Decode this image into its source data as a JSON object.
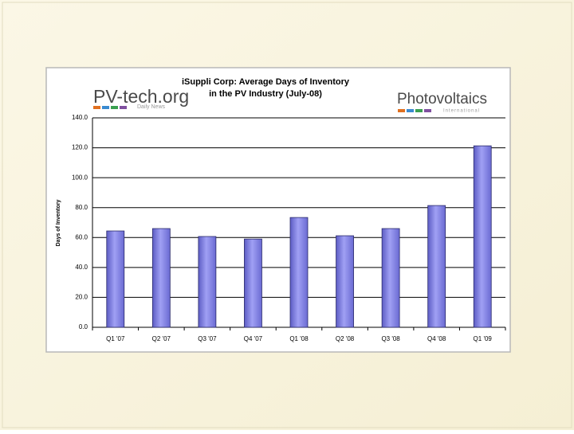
{
  "chart_data": {
    "type": "bar",
    "title": "iSuppli Corp: Average Days of Inventory",
    "subtitle": "in the PV Industry (July-08)",
    "logos": [
      {
        "name": "PV-tech.org",
        "tagline": "Daily News"
      },
      {
        "name": "Photovoltaics",
        "tagline": "International"
      }
    ],
    "y_label": "Days of Inventory",
    "categories": [
      "Q1 '07",
      "Q2 '07",
      "Q3 '07",
      "Q4 '07",
      "Q1 '08",
      "Q2 '08",
      "Q3 '08",
      "Q4 '08",
      "Q1 '09"
    ],
    "values": [
      64.4,
      66,
      60.7,
      59,
      73.4,
      61.2,
      66,
      81.4,
      121.3
    ],
    "color": "#7f7fe0",
    "ylim": [
      0,
      140
    ],
    "yticks": [
      {
        "value": 0,
        "label": "0.0"
      },
      {
        "value": 20,
        "label": "20.0"
      },
      {
        "value": 40,
        "label": "40.0"
      },
      {
        "value": 60,
        "label": "60.0"
      },
      {
        "value": 80,
        "label": "80.0"
      },
      {
        "value": 100,
        "label": "100.0"
      },
      {
        "value": 120,
        "label": "120.0"
      },
      {
        "value": 140,
        "label": "140.0"
      }
    ],
    "grid": true
  }
}
